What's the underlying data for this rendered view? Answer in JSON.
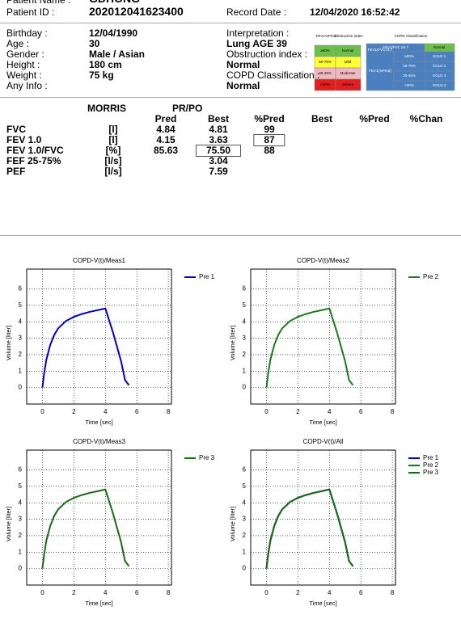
{
  "header": {
    "patient_name_label": "Patient Name :",
    "patient_name": "GDHONG",
    "patient_id_label": "Patient ID :",
    "patient_id": "202012041623400",
    "record_date_label": "Record Date :",
    "record_date": "12/04/2020 16:52:42"
  },
  "info": [
    {
      "label": "Birthday :",
      "value": "12/04/1990"
    },
    {
      "label": "Age :",
      "value": "30"
    },
    {
      "label": "Gender :",
      "value": "Male / Asian"
    },
    {
      "label": "Height :",
      "value": "180 cm"
    },
    {
      "label": "Weight :",
      "value": "75 kg"
    },
    {
      "label": "Any Info :"
    }
  ],
  "interpretation": [
    {
      "label": "Interpretation :",
      "value": "Lung AGE 39"
    },
    {
      "label": "Obstruction index :",
      "value": "Normal"
    },
    {
      "label": "COPD Classification :",
      "value": "Normal"
    }
  ],
  "obstructive_legend": {
    "headers": [
      "FEV1%Pred",
      "Obstructive Index"
    ],
    "rows": [
      [
        "≥80%",
        "Normal"
      ],
      [
        "50-79%",
        "Mild"
      ],
      [
        "30-49%",
        "Moderate"
      ],
      [
        "<30%",
        "Severe"
      ]
    ]
  },
  "copd_legend": {
    "title": "COPD Classification",
    "normal": [
      "FEV1/FVC ≥0.7",
      "Normal"
    ],
    "obstructed_label": "FEV1/FVC<0.7",
    "pred_label": "FEV1(%Pred)",
    "rows": [
      [
        "≥80%",
        "GOLD 1"
      ],
      [
        "50-79%",
        "GOLD 2"
      ],
      [
        "30-49%",
        "GOLD 3"
      ],
      [
        "<30%",
        "GOLD 4"
      ]
    ]
  },
  "results": {
    "reference": "MORRIS",
    "group": "PR/PO",
    "columns": [
      "Pred",
      "Best",
      "%Pred",
      "Best",
      "%Pred",
      "%Chan"
    ],
    "rows": [
      {
        "name": "FVC",
        "unit": "[l]",
        "values": [
          "4.84",
          "4.81",
          "99"
        ]
      },
      {
        "name": "FEV 1.0",
        "unit": "[l]",
        "values": [
          "4.15",
          "3.63",
          "87"
        ]
      },
      {
        "name": "FEV 1.0/FVC",
        "unit": "[%]",
        "values": [
          "85.63",
          "75.50",
          "88"
        ]
      },
      {
        "name": "FEF 25-75%",
        "unit": "[l/s]",
        "values": [
          null,
          "3.04"
        ]
      },
      {
        "name": "PEF",
        "unit": "[l/s]",
        "values": [
          null,
          "7.59"
        ]
      }
    ]
  },
  "chart_data": [
    {
      "type": "line",
      "title": "COPD-V(t)/Meas1",
      "xlabel": "Time [sec]",
      "ylabel": "Volume [liter]",
      "xlim": [
        -1,
        8.2
      ],
      "ylim": [
        -1,
        7.2
      ],
      "xticks": [
        0,
        2,
        4,
        6,
        8
      ],
      "yticks": [
        0,
        1,
        2,
        3,
        4,
        5,
        6
      ],
      "grid": true,
      "legend": "right",
      "x": [
        0,
        0.1,
        0.25,
        0.5,
        0.75,
        1,
        1.5,
        2,
        2.5,
        3,
        3.5,
        4,
        4.5,
        5,
        5.25,
        5.5
      ],
      "series": [
        {
          "name": "Pre 1",
          "color": "#0000c8",
          "values": [
            0,
            0.8,
            1.7,
            2.6,
            3.2,
            3.6,
            4.05,
            4.3,
            4.47,
            4.6,
            4.7,
            4.81,
            3.3,
            1.6,
            0.45,
            0.15
          ]
        }
      ]
    },
    {
      "type": "line",
      "title": "COPD-V(t)/Meas2",
      "xlabel": "Time [sec]",
      "ylabel": "Volume [liter]",
      "xlim": [
        -1,
        8.2
      ],
      "ylim": [
        -1,
        7.2
      ],
      "xticks": [
        0,
        2,
        4,
        6,
        8
      ],
      "yticks": [
        0,
        1,
        2,
        3,
        4,
        5,
        6
      ],
      "grid": true,
      "legend": "right",
      "x": [
        0,
        0.1,
        0.25,
        0.5,
        0.75,
        1,
        1.5,
        2,
        2.5,
        3,
        3.5,
        4,
        4.5,
        5,
        5.25,
        5.5
      ],
      "series": [
        {
          "name": "Pre 2",
          "color": "#1a7a1a",
          "values": [
            0,
            0.8,
            1.7,
            2.6,
            3.2,
            3.6,
            4.05,
            4.3,
            4.47,
            4.6,
            4.7,
            4.81,
            3.3,
            1.6,
            0.45,
            0.15
          ]
        }
      ]
    },
    {
      "type": "line",
      "title": "COPD-V(t)/Meas3",
      "xlabel": "Time [sec]",
      "ylabel": "Volume [liter]",
      "xlim": [
        -1,
        8.2
      ],
      "ylim": [
        -1,
        7.2
      ],
      "xticks": [
        0,
        2,
        4,
        6,
        8
      ],
      "yticks": [
        0,
        1,
        2,
        3,
        4,
        5,
        6
      ],
      "grid": true,
      "legend": "right",
      "x": [
        0,
        0.1,
        0.25,
        0.5,
        0.75,
        1,
        1.5,
        2,
        2.5,
        3,
        3.5,
        4,
        4.5,
        5,
        5.25,
        5.5
      ],
      "series": [
        {
          "name": "Pre 3",
          "color": "#1a6a1a",
          "values": [
            0,
            0.8,
            1.7,
            2.6,
            3.2,
            3.6,
            4.05,
            4.3,
            4.47,
            4.6,
            4.7,
            4.81,
            3.3,
            1.6,
            0.45,
            0.15
          ]
        }
      ]
    },
    {
      "type": "line",
      "title": "COPD-V(t)/All",
      "xlabel": "Time [sec]",
      "ylabel": "Volume [liter]",
      "xlim": [
        -1,
        8.2
      ],
      "ylim": [
        -1,
        7.2
      ],
      "xticks": [
        0,
        2,
        4,
        6,
        8
      ],
      "yticks": [
        0,
        1,
        2,
        3,
        4,
        5,
        6
      ],
      "grid": true,
      "legend": "right",
      "x": [
        0,
        0.1,
        0.25,
        0.5,
        0.75,
        1,
        1.5,
        2,
        2.5,
        3,
        3.5,
        4,
        4.5,
        5,
        5.25,
        5.5
      ],
      "series": [
        {
          "name": "Pre 1",
          "color": "#0000c8",
          "values": [
            0,
            0.8,
            1.7,
            2.6,
            3.2,
            3.6,
            4.05,
            4.3,
            4.47,
            4.6,
            4.7,
            4.81,
            3.3,
            1.6,
            0.45,
            0.15
          ]
        },
        {
          "name": "Pre 2",
          "color": "#1a7a1a",
          "values": [
            0,
            0.8,
            1.7,
            2.6,
            3.2,
            3.6,
            4.05,
            4.3,
            4.47,
            4.6,
            4.7,
            4.81,
            3.3,
            1.6,
            0.45,
            0.15
          ]
        },
        {
          "name": "Pre 3",
          "color": "#1a6a1a",
          "values": [
            0,
            0.8,
            1.7,
            2.6,
            3.2,
            3.6,
            4.05,
            4.3,
            4.47,
            4.6,
            4.7,
            4.81,
            3.3,
            1.6,
            0.45,
            0.15
          ]
        }
      ]
    }
  ]
}
